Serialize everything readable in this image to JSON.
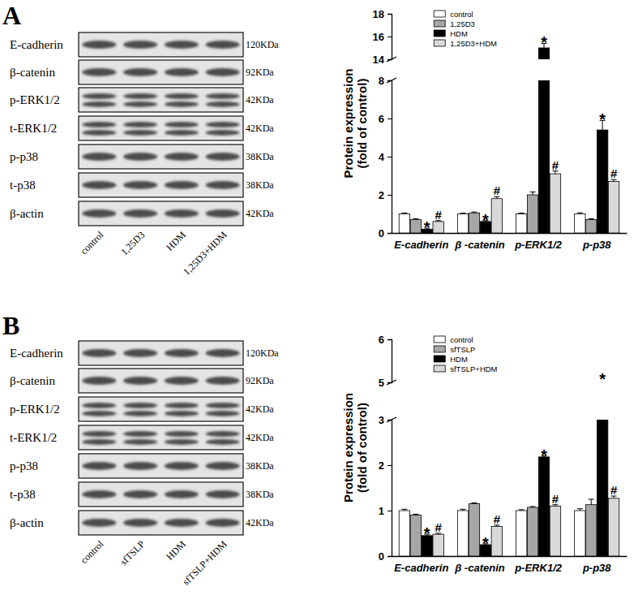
{
  "chart_data": [
    {
      "type": "bar",
      "ylabel": [
        "Protein expression",
        "(fold of control)"
      ],
      "categories": [
        "E-cadherin",
        "β -catenin",
        "p-ERK1/2",
        "p-p38"
      ],
      "series": [
        {
          "name": "control",
          "color": "#ffffff",
          "values": [
            1,
            1,
            1,
            1
          ],
          "errors": [
            0.05,
            0.04,
            0.04,
            0.06
          ]
        },
        {
          "name": "1,25D3",
          "color": "#a6a6a6",
          "values": [
            0.7,
            1.05,
            2.0,
            0.7
          ],
          "errors": [
            0.05,
            0.05,
            0.15,
            0.05
          ]
        },
        {
          "name": "HDM",
          "color": "#000000",
          "values": [
            0.2,
            0.6,
            15.0,
            5.4
          ],
          "errors": [
            0.05,
            0.05,
            0.4,
            0.5
          ],
          "annotations": [
            "*",
            "*",
            "*",
            "*"
          ]
        },
        {
          "name": "1,25D3+HDM",
          "color": "#d9d9d9",
          "values": [
            0.6,
            1.8,
            3.1,
            2.7
          ],
          "errors": [
            0.05,
            0.1,
            0.15,
            0.1
          ],
          "annotations": [
            "#",
            "#",
            "#",
            "#"
          ]
        }
      ],
      "ylim": [
        0,
        18
      ],
      "y_break": [
        8,
        14
      ],
      "yticks": [
        0,
        2,
        4,
        6,
        8,
        14,
        16,
        18
      ],
      "legend": "upper left",
      "grid": false
    },
    {
      "type": "bar",
      "ylabel": [
        "Protein expression",
        "(fold of control)"
      ],
      "categories": [
        "E-cadherin",
        "β -catenin",
        "p-ERK1/2",
        "p-p38"
      ],
      "series": [
        {
          "name": "control",
          "color": "#ffffff",
          "values": [
            1,
            1,
            1,
            1
          ],
          "errors": [
            0.03,
            0.03,
            0.02,
            0.04
          ]
        },
        {
          "name": "sfTSLP",
          "color": "#a6a6a6",
          "values": [
            0.9,
            1.15,
            1.07,
            1.13
          ],
          "errors": [
            0.02,
            0.02,
            0.02,
            0.12
          ]
        },
        {
          "name": "HDM",
          "color": "#000000",
          "values": [
            0.45,
            0.25,
            2.18,
            4.9
          ],
          "errors": [
            0.03,
            0.02,
            0.02,
            0.15
          ],
          "annotations": [
            "*",
            "*",
            "*",
            "*"
          ]
        },
        {
          "name": "sfTSLP+HDM",
          "color": "#d9d9d9",
          "values": [
            0.48,
            0.65,
            1.1,
            1.27
          ],
          "errors": [
            0.02,
            0.03,
            0.03,
            0.05
          ],
          "annotations": [
            "#",
            "#",
            "#",
            "#"
          ]
        }
      ],
      "ylim": [
        0,
        6
      ],
      "y_break": [
        3,
        5
      ],
      "yticks": [
        0,
        1,
        2,
        3,
        5,
        6
      ],
      "legend": "upper left",
      "grid": false
    }
  ],
  "blots": [
    {
      "panel": "A",
      "rows": [
        {
          "protein": "E-cadherin",
          "size": "120KDa"
        },
        {
          "protein": "β-catenin",
          "size": "92KDa"
        },
        {
          "protein": "p-ERK1/2",
          "size": "42KDa"
        },
        {
          "protein": "t-ERK1/2",
          "size": "42KDa"
        },
        {
          "protein": "p-p38",
          "size": "38KDa"
        },
        {
          "protein": "t-p38",
          "size": "38KDa"
        },
        {
          "protein": "β-actin",
          "size": "42KDa"
        }
      ],
      "lanes": [
        "control",
        "1,25D3",
        "HDM",
        "1,25D3+HDM"
      ]
    },
    {
      "panel": "B",
      "rows": [
        {
          "protein": "E-cadherin",
          "size": "120KDa"
        },
        {
          "protein": "β-catenin",
          "size": "92KDa"
        },
        {
          "protein": "p-ERK1/2",
          "size": "42KDa"
        },
        {
          "protein": "t-ERK1/2",
          "size": "42KDa"
        },
        {
          "protein": "p-p38",
          "size": "38KDa"
        },
        {
          "protein": "t-p38",
          "size": "38KDa"
        },
        {
          "protein": "β-actin",
          "size": "42KDa"
        }
      ],
      "lanes": [
        "control",
        "sfTSLP",
        "HDM",
        "sfTSLP+HDM"
      ]
    }
  ]
}
